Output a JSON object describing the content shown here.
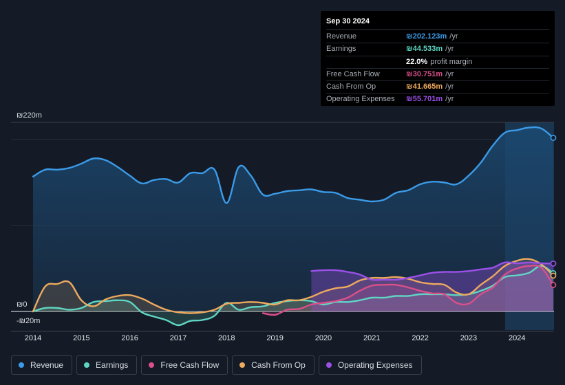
{
  "tooltip": {
    "date": "Sep 30 2024",
    "rows": [
      {
        "key": "Revenue",
        "value": "₪202.123m",
        "unit": "/yr",
        "color": "#3b9be8"
      },
      {
        "key": "Earnings",
        "value": "₪44.533m",
        "unit": "/yr",
        "color": "#5fd6c3"
      },
      {
        "key": "",
        "value": "22.0%",
        "unit": "profit margin",
        "color": "#ffffff"
      },
      {
        "key": "Free Cash Flow",
        "value": "₪30.751m",
        "unit": "/yr",
        "color": "#d9508a"
      },
      {
        "key": "Cash From Op",
        "value": "₪41.665m",
        "unit": "/yr",
        "color": "#eeaa5e"
      },
      {
        "key": "Operating Expenses",
        "value": "₪55.701m",
        "unit": "/yr",
        "color": "#9b50e6"
      }
    ]
  },
  "legend": [
    {
      "label": "Revenue",
      "color": "#3b9be8"
    },
    {
      "label": "Earnings",
      "color": "#5fd6c3"
    },
    {
      "label": "Free Cash Flow",
      "color": "#d9508a"
    },
    {
      "label": "Cash From Op",
      "color": "#eeaa5e"
    },
    {
      "label": "Operating Expenses",
      "color": "#9b50e6"
    }
  ],
  "chart_data": {
    "type": "line",
    "y_unit": "₪ millions",
    "ylim": [
      -20,
      220
    ],
    "y_tick_labels": [
      {
        "value": 220,
        "label": "₪220m"
      },
      {
        "value": 0,
        "label": "₪0"
      },
      {
        "value": -20,
        "label": "-₪20m"
      }
    ],
    "x_range": [
      2014,
      2024.75
    ],
    "x_tick_labels": [
      "2014",
      "2015",
      "2016",
      "2017",
      "2018",
      "2019",
      "2020",
      "2021",
      "2022",
      "2023",
      "2024"
    ],
    "highlight_from": 2023.75,
    "series": [
      {
        "name": "Revenue",
        "color": "#3b9be8",
        "points": [
          [
            2014.0,
            157
          ],
          [
            2014.25,
            165
          ],
          [
            2014.5,
            165
          ],
          [
            2014.75,
            167
          ],
          [
            2015.0,
            172
          ],
          [
            2015.25,
            178
          ],
          [
            2015.5,
            176
          ],
          [
            2015.75,
            168
          ],
          [
            2016.0,
            158
          ],
          [
            2016.25,
            149
          ],
          [
            2016.5,
            153
          ],
          [
            2016.75,
            154
          ],
          [
            2017.0,
            150
          ],
          [
            2017.25,
            161
          ],
          [
            2017.5,
            161
          ],
          [
            2017.75,
            165
          ],
          [
            2018.0,
            126
          ],
          [
            2018.25,
            168
          ],
          [
            2018.5,
            158
          ],
          [
            2018.75,
            136
          ],
          [
            2019.0,
            137
          ],
          [
            2019.25,
            140
          ],
          [
            2019.5,
            141
          ],
          [
            2019.75,
            142
          ],
          [
            2020.0,
            139
          ],
          [
            2020.25,
            138
          ],
          [
            2020.5,
            132
          ],
          [
            2020.75,
            130
          ],
          [
            2021.0,
            128
          ],
          [
            2021.25,
            130
          ],
          [
            2021.5,
            138
          ],
          [
            2021.75,
            141
          ],
          [
            2022.0,
            148
          ],
          [
            2022.25,
            151
          ],
          [
            2022.5,
            150
          ],
          [
            2022.75,
            148
          ],
          [
            2023.0,
            158
          ],
          [
            2023.25,
            173
          ],
          [
            2023.5,
            193
          ],
          [
            2023.75,
            208
          ],
          [
            2024.0,
            211
          ],
          [
            2024.25,
            214
          ],
          [
            2024.5,
            213
          ],
          [
            2024.75,
            202
          ]
        ]
      },
      {
        "name": "Earnings",
        "color": "#5fd6c3",
        "points": [
          [
            2014.0,
            0
          ],
          [
            2014.25,
            4
          ],
          [
            2014.5,
            4
          ],
          [
            2014.75,
            2
          ],
          [
            2015.0,
            4
          ],
          [
            2015.25,
            11
          ],
          [
            2015.5,
            12
          ],
          [
            2015.75,
            13
          ],
          [
            2016.0,
            11
          ],
          [
            2016.25,
            -1
          ],
          [
            2016.5,
            -6
          ],
          [
            2016.75,
            -10
          ],
          [
            2017.0,
            -16
          ],
          [
            2017.25,
            -11
          ],
          [
            2017.5,
            -10
          ],
          [
            2017.75,
            -5
          ],
          [
            2018.0,
            10
          ],
          [
            2018.25,
            2
          ],
          [
            2018.5,
            5
          ],
          [
            2018.75,
            6
          ],
          [
            2019.0,
            10
          ],
          [
            2019.25,
            12
          ],
          [
            2019.5,
            13
          ],
          [
            2019.75,
            12
          ],
          [
            2020.0,
            8
          ],
          [
            2020.25,
            11
          ],
          [
            2020.5,
            11
          ],
          [
            2020.75,
            13
          ],
          [
            2021.0,
            16
          ],
          [
            2021.25,
            16
          ],
          [
            2021.5,
            18
          ],
          [
            2021.75,
            18
          ],
          [
            2022.0,
            20
          ],
          [
            2022.25,
            20
          ],
          [
            2022.5,
            20
          ],
          [
            2022.75,
            19
          ],
          [
            2023.0,
            20
          ],
          [
            2023.25,
            24
          ],
          [
            2023.5,
            30
          ],
          [
            2023.75,
            40
          ],
          [
            2024.0,
            42
          ],
          [
            2024.25,
            45
          ],
          [
            2024.5,
            53
          ],
          [
            2024.75,
            44.5
          ]
        ]
      },
      {
        "name": "Free Cash Flow",
        "color": "#d9508a",
        "points": [
          [
            2018.75,
            -2
          ],
          [
            2019.0,
            -4
          ],
          [
            2019.25,
            2
          ],
          [
            2019.5,
            3
          ],
          [
            2019.75,
            8
          ],
          [
            2020.0,
            10
          ],
          [
            2020.25,
            12
          ],
          [
            2020.5,
            16
          ],
          [
            2020.75,
            24
          ],
          [
            2021.0,
            30
          ],
          [
            2021.25,
            31
          ],
          [
            2021.5,
            31
          ],
          [
            2021.75,
            28
          ],
          [
            2022.0,
            24
          ],
          [
            2022.25,
            21
          ],
          [
            2022.5,
            20
          ],
          [
            2022.75,
            10
          ],
          [
            2023.0,
            9
          ],
          [
            2023.25,
            20
          ],
          [
            2023.5,
            28
          ],
          [
            2023.75,
            43
          ],
          [
            2024.0,
            50
          ],
          [
            2024.25,
            53
          ],
          [
            2024.5,
            51
          ],
          [
            2024.75,
            30.8
          ]
        ]
      },
      {
        "name": "Cash From Op",
        "color": "#eeaa5e",
        "points": [
          [
            2014.0,
            0
          ],
          [
            2014.25,
            29
          ],
          [
            2014.5,
            32
          ],
          [
            2014.75,
            34
          ],
          [
            2015.0,
            13
          ],
          [
            2015.25,
            6
          ],
          [
            2015.5,
            14
          ],
          [
            2015.75,
            18
          ],
          [
            2016.0,
            19
          ],
          [
            2016.25,
            15
          ],
          [
            2016.5,
            8
          ],
          [
            2016.75,
            2
          ],
          [
            2017.0,
            -1
          ],
          [
            2017.25,
            -2
          ],
          [
            2017.5,
            -1
          ],
          [
            2017.75,
            2
          ],
          [
            2018.0,
            9
          ],
          [
            2018.25,
            10
          ],
          [
            2018.5,
            11
          ],
          [
            2018.75,
            10
          ],
          [
            2019.0,
            8
          ],
          [
            2019.25,
            13
          ],
          [
            2019.5,
            13
          ],
          [
            2019.75,
            17
          ],
          [
            2020.0,
            23
          ],
          [
            2020.25,
            27
          ],
          [
            2020.5,
            29
          ],
          [
            2020.75,
            36
          ],
          [
            2021.0,
            39
          ],
          [
            2021.25,
            39
          ],
          [
            2021.5,
            40
          ],
          [
            2021.75,
            38
          ],
          [
            2022.0,
            34
          ],
          [
            2022.25,
            32
          ],
          [
            2022.5,
            31
          ],
          [
            2022.75,
            22
          ],
          [
            2023.0,
            20
          ],
          [
            2023.25,
            31
          ],
          [
            2023.5,
            41
          ],
          [
            2023.75,
            53
          ],
          [
            2024.0,
            59
          ],
          [
            2024.25,
            61
          ],
          [
            2024.5,
            55
          ],
          [
            2024.75,
            41.7
          ]
        ]
      },
      {
        "name": "Operating Expenses",
        "color": "#9b50e6",
        "points": [
          [
            2019.75,
            47
          ],
          [
            2020.0,
            48
          ],
          [
            2020.25,
            48
          ],
          [
            2020.5,
            46
          ],
          [
            2020.75,
            43
          ],
          [
            2021.0,
            37
          ],
          [
            2021.25,
            37
          ],
          [
            2021.5,
            37
          ],
          [
            2021.75,
            39
          ],
          [
            2022.0,
            42
          ],
          [
            2022.25,
            45
          ],
          [
            2022.5,
            46
          ],
          [
            2022.75,
            46
          ],
          [
            2023.0,
            47
          ],
          [
            2023.25,
            49
          ],
          [
            2023.5,
            51
          ],
          [
            2023.75,
            57
          ],
          [
            2024.0,
            56
          ],
          [
            2024.25,
            57
          ],
          [
            2024.5,
            56
          ],
          [
            2024.75,
            55.7
          ]
        ]
      }
    ]
  }
}
